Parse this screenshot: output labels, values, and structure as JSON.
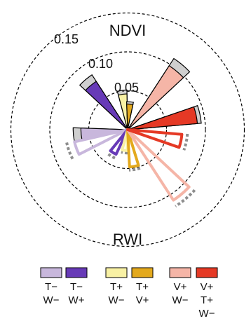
{
  "chart_data": {
    "type": "rose",
    "title": "",
    "top_label": "NDVI",
    "bottom_label": "RWI",
    "radial_ticks": [
      "0.05",
      "0.10",
      "0.15"
    ],
    "colors": {
      "tw_minus_minus": "#c8b7dc",
      "tw_minus_plus": "#673ab7",
      "tw_plus_minus": "#f8f1a4",
      "tw_plus_plus": "#e3a91d",
      "vw_plus_minus": "#f5b5a7",
      "vw_plus_plus": "#e53925",
      "gray": "#cfcfcf",
      "dash_gray": "#8e8e8e"
    },
    "legend": [
      {
        "line1": "T−",
        "line2": "W−",
        "color": "#c8b7dc"
      },
      {
        "line1": "T−",
        "line2": "W+",
        "color": "#673ab7"
      },
      {
        "line1": "T+",
        "line2": "W−",
        "color": "#f8f1a4"
      },
      {
        "line1": "T+",
        "line2": "V+",
        "color": "#e3a91d"
      },
      {
        "line1": "V+",
        "line2": "W−",
        "color": "#f5b5a7"
      },
      {
        "line1": "V+",
        "line2": "T+",
        "line3": "W−",
        "color": "#e53925"
      }
    ],
    "sectors": {
      "ndvi": [
        {
          "color": "#c8b7dc",
          "angle": 265,
          "value": 0.06,
          "gray": 0.07
        },
        {
          "color": "#673ab7",
          "angle": 320,
          "value": 0.074,
          "gray": 0.084
        },
        {
          "color": "#f8f1a4",
          "angle": 352,
          "value": 0.046,
          "gray": 0.051
        },
        {
          "color": "#e3a91d",
          "angle": 5,
          "value": 0.033,
          "gray": 0.036
        },
        {
          "color": "#f5b5a7",
          "angle": 40,
          "value": 0.098,
          "gray": 0.109
        },
        {
          "color": "#e53925",
          "angle": 78,
          "value": 0.09,
          "gray": 0.095
        }
      ],
      "rwi": [
        {
          "color": "#c8b7dc",
          "angle": 250,
          "value": 0.07,
          "gray": 0.08
        },
        {
          "color": "#673ab7",
          "angle": 212,
          "value": 0.035,
          "gray": 0.04
        },
        {
          "color": "#f8f1a4",
          "angle": 188,
          "value": 0.027,
          "gray": 0.03
        },
        {
          "color": "#e3a91d",
          "angle": 170,
          "value": 0.048,
          "gray": 0.052
        },
        {
          "color": "#f5b5a7",
          "angle": 140,
          "value": 0.108,
          "gray": 0.116
        },
        {
          "color": "#e53925",
          "angle": 102,
          "value": 0.07,
          "gray": 0.077
        }
      ]
    }
  }
}
